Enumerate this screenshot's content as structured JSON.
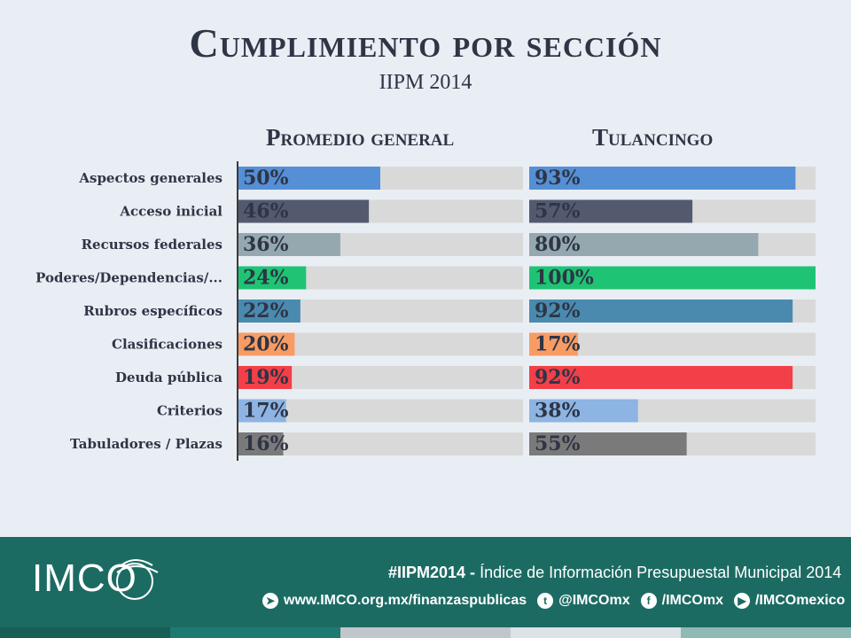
{
  "header": {
    "title": "Cumplimiento por sección",
    "subtitle": "IIPM 2014"
  },
  "chart_data": [
    {
      "type": "bar",
      "orientation": "horizontal",
      "title": "Promedio general",
      "categories": [
        "Aspectos generales",
        "Acceso inicial",
        "Recursos federales",
        "Poderes/Dependencias/...",
        "Rubros específicos",
        "Clasificaciones",
        "Deuda pública",
        "Criterios",
        "Tabuladores / Plazas"
      ],
      "values": [
        50,
        46,
        36,
        24,
        22,
        20,
        19,
        17,
        16
      ],
      "labels": [
        "50%",
        "46%",
        "36%",
        "24%",
        "22%",
        "20%",
        "19%",
        "17%",
        "16%"
      ],
      "xlim": [
        0,
        100
      ],
      "unit": "%"
    },
    {
      "type": "bar",
      "orientation": "horizontal",
      "title": "Tulancingo",
      "categories": [
        "Aspectos generales",
        "Acceso inicial",
        "Recursos federales",
        "Poderes/Dependencias/...",
        "Rubros específicos",
        "Clasificaciones",
        "Deuda pública",
        "Criterios",
        "Tabuladores / Plazas"
      ],
      "values": [
        93,
        57,
        80,
        100,
        92,
        17,
        92,
        38,
        55
      ],
      "labels": [
        "93%",
        "57%",
        "80%",
        "100%",
        "92%",
        "17%",
        "92%",
        "38%",
        "55%"
      ],
      "xlim": [
        0,
        100
      ],
      "unit": "%"
    }
  ],
  "colors": {
    "bars": [
      "#558fd6",
      "#535a70",
      "#95a8b0",
      "#1ec474",
      "#4a8aaf",
      "#f89c64",
      "#f23f48",
      "#8db4e2",
      "#7a7a7a"
    ],
    "track": "#d9d9d9",
    "axis": "#3b3b3b",
    "footer": "#1c6b63"
  },
  "footer": {
    "logo": "IMCO",
    "hashtag": "#IIPM2014 -",
    "tagline": "Índice de Información Presupuestal Municipal 2014",
    "links": [
      {
        "icon": "paper-plane-icon",
        "text": "www.IMCO.org.mx/finanzaspublicas"
      },
      {
        "icon": "twitter-icon",
        "text": "@IMCOmx"
      },
      {
        "icon": "facebook-icon",
        "text": "/IMCOmx"
      },
      {
        "icon": "youtube-icon",
        "text": "/IMCOmexico"
      }
    ],
    "strip_colors": [
      "#175e56",
      "#1e7a70",
      "#c0c6cc",
      "#dde2e6",
      "#8fb9b4"
    ]
  }
}
